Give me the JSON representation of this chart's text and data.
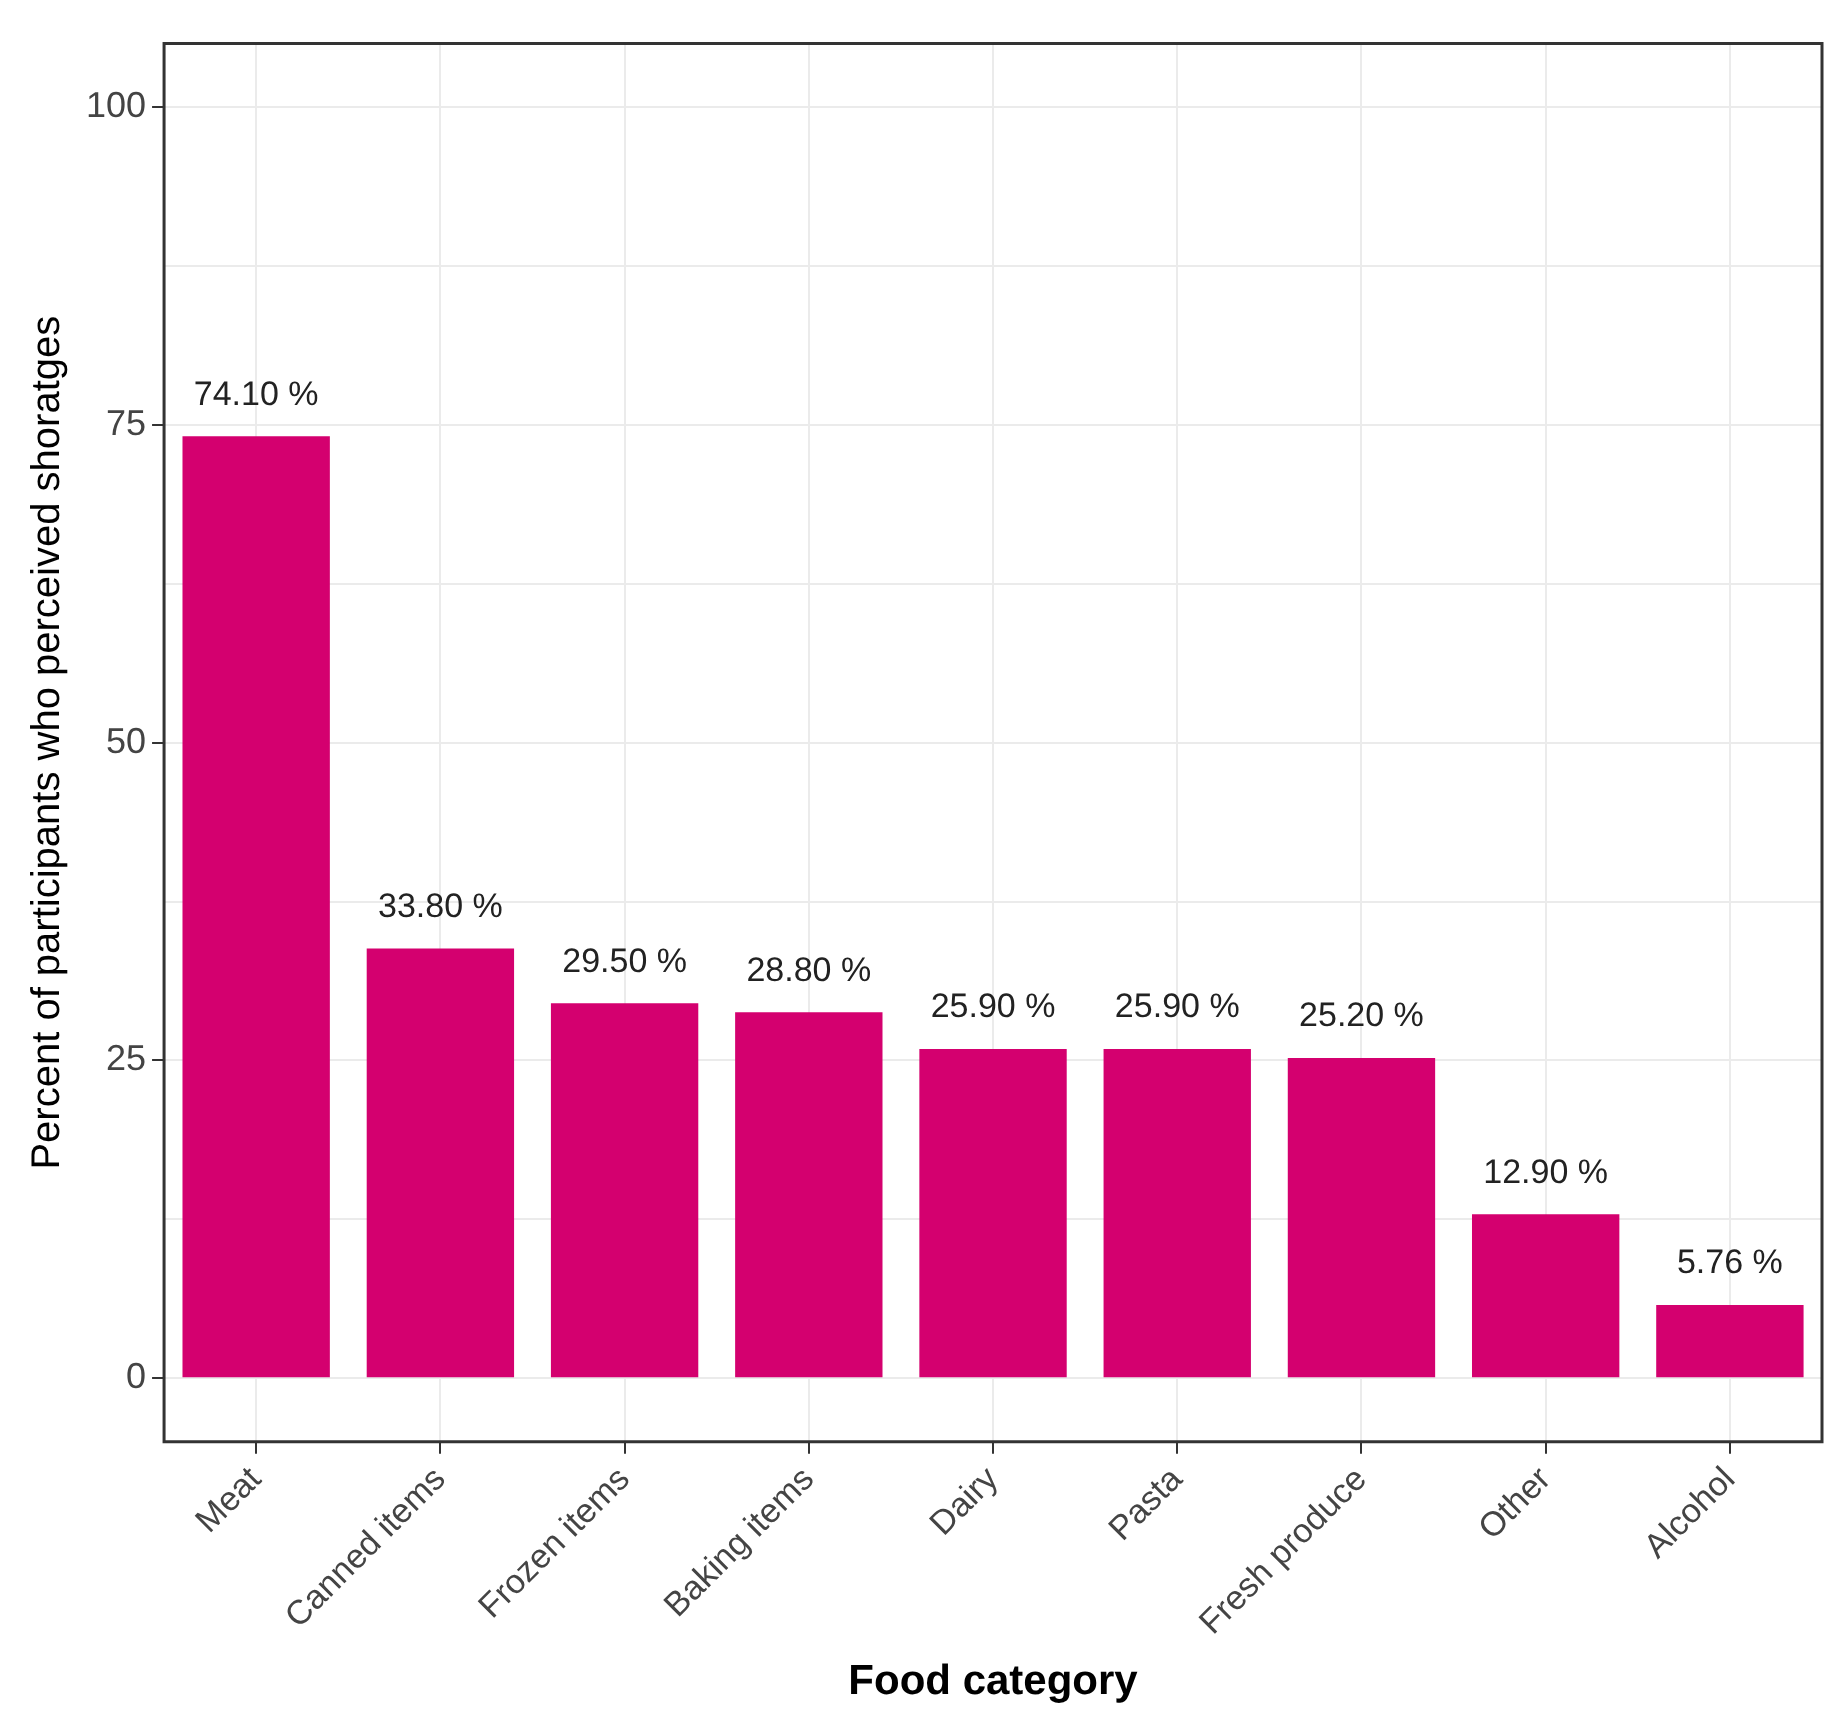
{
  "chart_data": {
    "type": "bar",
    "xlabel": "Food category",
    "ylabel": "Percent of participants who perceived shoratges",
    "categories": [
      "Meat",
      "Canned items",
      "Frozen items",
      "Baking items",
      "Dairy",
      "Pasta",
      "Fresh produce",
      "Other",
      "Alcohol"
    ],
    "values": [
      74.1,
      33.8,
      29.5,
      28.8,
      25.9,
      25.9,
      25.2,
      12.9,
      5.76
    ],
    "value_labels": [
      "74.10 %",
      "33.80 %",
      "29.50 %",
      "28.80 %",
      "25.90 %",
      "25.90 %",
      "25.20 %",
      "12.90 %",
      "5.76 %"
    ],
    "color": "#d4006f",
    "ylim": [
      -5,
      105
    ],
    "yticks": [
      0,
      {
        "value": 12.5,
        "label": null
      },
      25,
      {
        "value": 37.5,
        "label": null
      },
      50,
      {
        "value": 62.5,
        "label": null
      },
      75,
      {
        "value": 87.5,
        "label": null
      },
      100
    ],
    "grid": true,
    "legend": false
  }
}
